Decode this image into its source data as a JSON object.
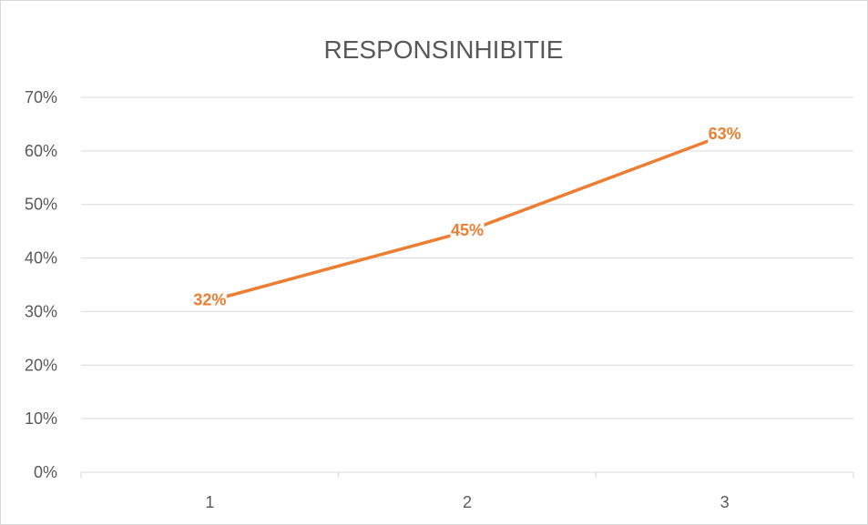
{
  "chart_data": {
    "type": "line",
    "title": "RESPONSINHIBITIE",
    "xlabel": "",
    "ylabel": "",
    "categories": [
      "1",
      "2",
      "3"
    ],
    "series": [
      {
        "values": [
          0.32,
          0.45,
          0.63
        ],
        "data_labels": [
          "32%",
          "45%",
          "63%"
        ],
        "color": "#ED7D31"
      }
    ],
    "ylim": [
      0,
      0.7
    ],
    "yticks": [
      0,
      0.1,
      0.2,
      0.3,
      0.4,
      0.5,
      0.6,
      0.7
    ],
    "ytick_labels": [
      "0%",
      "10%",
      "20%",
      "30%",
      "40%",
      "50%",
      "60%",
      "70%"
    ],
    "grid": true,
    "legend": "none",
    "gridline_color": "#d9d9d9",
    "text_color": "#595959"
  }
}
